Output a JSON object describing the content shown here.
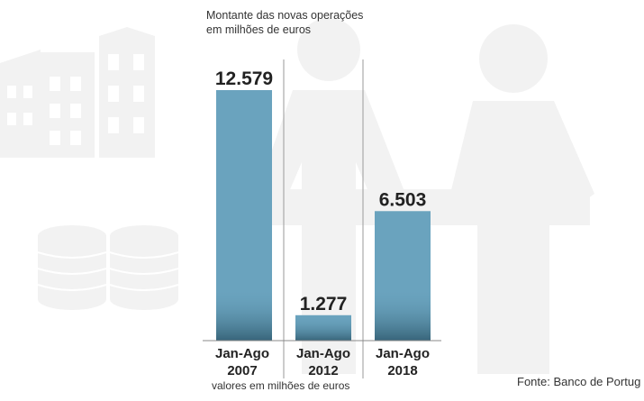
{
  "chart_data": {
    "type": "bar",
    "title_line1": "Montante das novas operações",
    "title_line2": "em milhões de euros",
    "categories": [
      [
        "Jan-Ago",
        "2007"
      ],
      [
        "Jan-Ago",
        "2012"
      ],
      [
        "Jan-Ago",
        "2018"
      ]
    ],
    "values": [
      12579,
      1277,
      6503
    ],
    "value_labels": [
      "12.579",
      "1.277",
      "6.503"
    ],
    "ylim": [
      0,
      12579
    ],
    "grid": false,
    "bar_color": "#6aa3be",
    "bar_shade_color": "#2f5a6e"
  },
  "footnote": "valores em milhões de euros",
  "source": "Fonte: Banco de Portug",
  "decor": {
    "silhouette_color": "#f2f2f2",
    "icons": [
      "buildings-icon",
      "coins-icon",
      "person-icon",
      "person-icon"
    ]
  }
}
